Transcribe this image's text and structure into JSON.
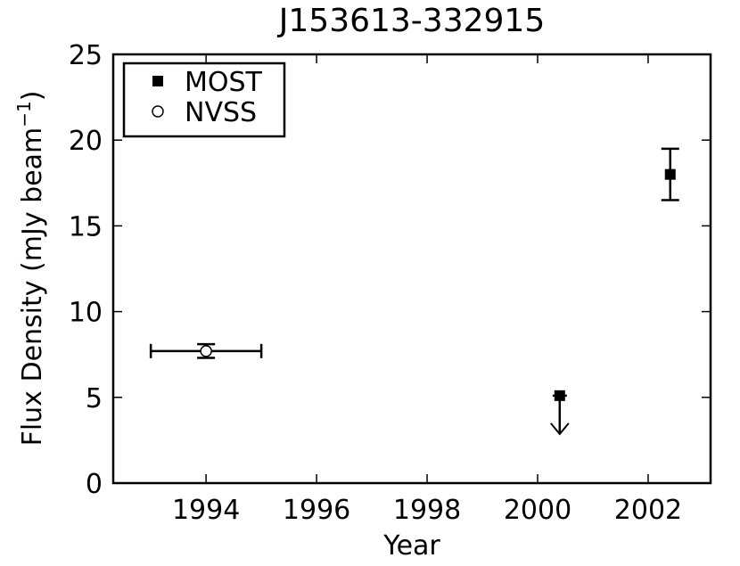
{
  "chart_data": {
    "type": "errorbar",
    "title": "J153613-332915",
    "x_label": "Year",
    "y_label": {
      "text": "Flux Density (mJy beam",
      "superscript": "−1",
      "close": ")"
    },
    "xlim": [
      1992.32,
      2003.13
    ],
    "xticks": [
      1994,
      1996,
      1998,
      2000,
      2002
    ],
    "ylim": [
      0,
      25
    ],
    "yticks": [
      0,
      5,
      10,
      15,
      20,
      25
    ],
    "legend": "upper left",
    "grid": false,
    "series": [
      {
        "name": "MOST",
        "marker": "square",
        "color": "#000000",
        "x": [
          2000.4,
          2002.4
        ],
        "values": [
          5.1,
          18
        ],
        "yerr": [
          null,
          1.5
        ],
        "upper_limit": [
          true,
          false
        ]
      },
      {
        "name": "NVSS",
        "marker": "circle",
        "color": "#000000",
        "x": [
          1994
        ],
        "values": [
          7.7
        ],
        "xerr": [
          1
        ],
        "yerr": [
          0.4
        ]
      }
    ]
  }
}
